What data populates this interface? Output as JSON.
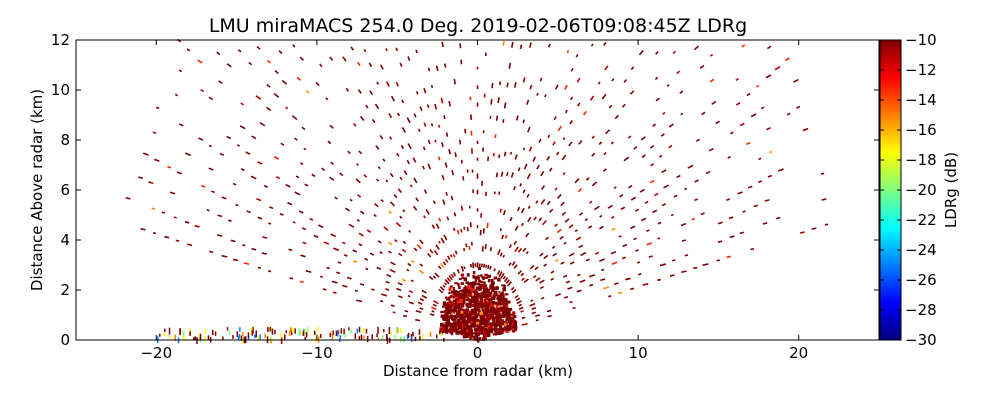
{
  "chart_data": {
    "type": "heatmap",
    "title": "LMU miraMACS 254.0 Deg. 2019-02-06T09:08:45Z  LDRg",
    "xlabel": "Distance from radar (km)",
    "ylabel": "Distance Above radar  (km)",
    "xlim": [
      -25,
      25
    ],
    "ylim": [
      0,
      12
    ],
    "xticks": [
      "−20",
      "−10",
      "0",
      "10",
      "20"
    ],
    "xtick_values": [
      -20,
      -10,
      0,
      10,
      20
    ],
    "yticks": [
      "0",
      "2",
      "4",
      "6",
      "8",
      "10",
      "12"
    ],
    "ytick_values": [
      0,
      2,
      4,
      6,
      8,
      10,
      12
    ],
    "colorbar": {
      "label": "LDRg (dB)",
      "range": [
        -30,
        -10
      ],
      "ticks": [
        "−10",
        "−12",
        "−14",
        "−16",
        "−18",
        "−20",
        "−22",
        "−24",
        "−26",
        "−28",
        "−30"
      ],
      "tick_values": [
        -10,
        -12,
        -14,
        -16,
        -18,
        -20,
        -22,
        -24,
        -26,
        -28,
        -30
      ],
      "colormap": [
        "#00007f",
        "#0000ff",
        "#007fff",
        "#00ffff",
        "#7fff7f",
        "#ffff00",
        "#ff7f00",
        "#ff0000",
        "#7f0000"
      ]
    },
    "scan": {
      "elevation_min_deg": 12,
      "elevation_max_deg": 168,
      "max_range_km": 22.5,
      "dominant_value_db": -10,
      "dense_core_radius_km": 2.5
    }
  }
}
